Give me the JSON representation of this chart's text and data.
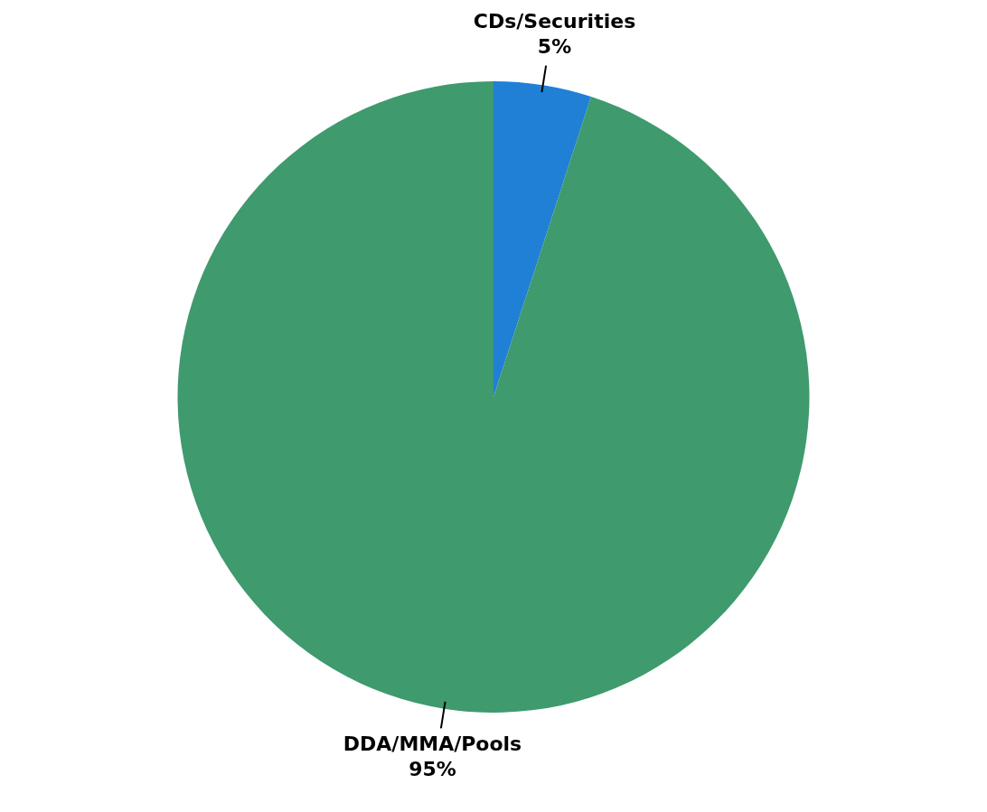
{
  "chart_data": {
    "type": "pie",
    "categories": [
      "CDs/Securities",
      "DDA/MMA/Pools"
    ],
    "values": [
      5,
      95
    ],
    "colors": [
      "#1f80d6",
      "#3f9a6e"
    ],
    "value_labels": [
      "5%",
      "95%"
    ],
    "legend": false
  }
}
